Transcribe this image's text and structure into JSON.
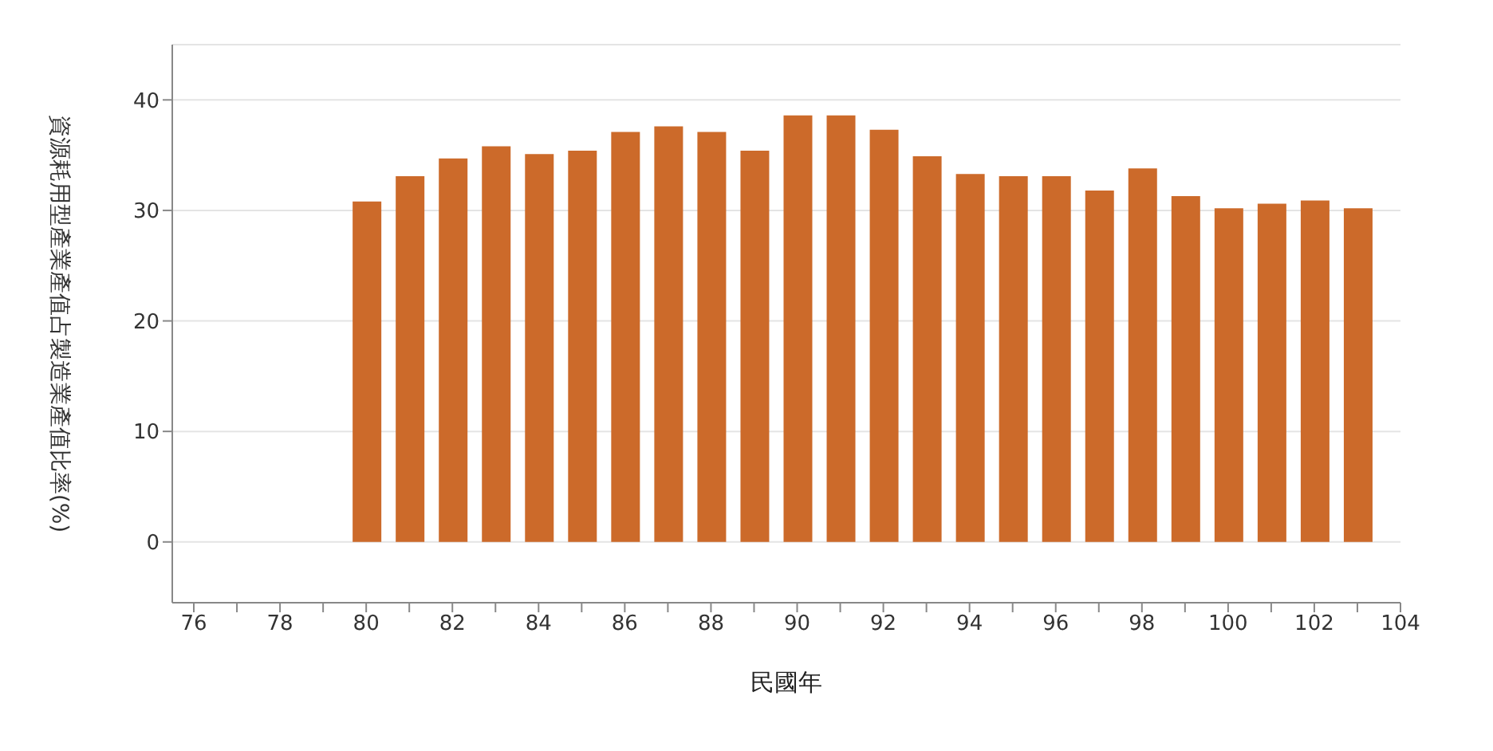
{
  "chart_data": {
    "type": "bar",
    "xlabel": "民國年",
    "ylabel": "資源耗用型產業產值占製造業產值比率(%)",
    "x": [
      80,
      81,
      82,
      83,
      84,
      85,
      86,
      87,
      88,
      89,
      90,
      91,
      92,
      93,
      94,
      95,
      96,
      97,
      98,
      99,
      100,
      101,
      102,
      103
    ],
    "values": [
      30.8,
      33.1,
      34.7,
      35.8,
      35.1,
      35.4,
      37.1,
      37.6,
      37.1,
      35.4,
      38.6,
      38.6,
      37.3,
      34.9,
      33.3,
      33.1,
      33.1,
      31.8,
      33.8,
      31.3,
      30.2,
      30.6,
      30.9,
      30.2
    ],
    "color": "#cc6a2a",
    "xlim": [
      75.5,
      104
    ],
    "xticks": [
      76,
      {
        "value": 77,
        "label": null
      },
      78,
      {
        "value": 79,
        "label": null
      },
      80,
      {
        "value": 81,
        "label": null
      },
      82,
      {
        "value": 83,
        "label": null
      },
      84,
      {
        "value": 85,
        "label": null
      },
      86,
      {
        "value": 87,
        "label": null
      },
      88,
      {
        "value": 89,
        "label": null
      },
      90,
      {
        "value": 91,
        "label": null
      },
      92,
      {
        "value": 93,
        "label": null
      },
      94,
      {
        "value": 95,
        "label": null
      },
      96,
      {
        "value": 97,
        "label": null
      },
      98,
      {
        "value": 99,
        "label": null
      },
      100,
      {
        "value": 101,
        "label": null
      },
      102,
      {
        "value": 103,
        "label": null
      },
      104
    ],
    "ylim": [
      -5.5,
      45
    ],
    "yticks": [
      0,
      10,
      20,
      30,
      40
    ],
    "grid": "y"
  }
}
